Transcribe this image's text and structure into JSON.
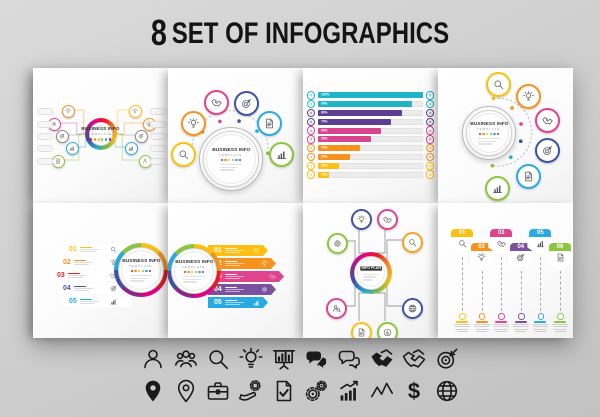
{
  "title": {
    "number": "8",
    "text": "SET OF INFOGRAPHICS"
  },
  "circle_text": {
    "line1": "BUSINESS INFO",
    "line2": "TEMPLATE"
  },
  "palette": {
    "red": "#ed1c24",
    "orange": "#f6921e",
    "yellow": "#fdc010",
    "green": "#8cc63e",
    "cyan": "#29abe2",
    "teal": "#1fb5c6",
    "blue": "#4053a3",
    "purple": "#7b519d",
    "magenta": "#e0448c",
    "violet": "#92278f",
    "ink": "#1a1a1a"
  },
  "panels": {
    "network_horizontal": {
      "name": "horizontal network infographic",
      "left_nodes": [
        {
          "icon": "idea",
          "color": "#f6921e"
        },
        {
          "icon": "gear",
          "color": "#e0448c"
        },
        {
          "icon": "target",
          "color": "#8a8a8a"
        },
        {
          "icon": "chart",
          "color": "#29abe2"
        },
        {
          "icon": "doc",
          "color": "#8cc63e"
        }
      ],
      "right_nodes": [
        {
          "icon": "idea",
          "color": "#fdc010"
        },
        {
          "icon": "money",
          "color": "#f6921e"
        },
        {
          "icon": "target",
          "color": "#8a8a8a"
        },
        {
          "icon": "chart",
          "color": "#29abe2"
        },
        {
          "icon": "person",
          "color": "#8cc63e"
        }
      ]
    },
    "badges_arc": {
      "name": "circle badges arc infographic",
      "badges": [
        {
          "icon": "search",
          "color": "#fdc010"
        },
        {
          "icon": "idea",
          "color": "#f6921e"
        },
        {
          "icon": "handshake",
          "color": "#e0448c"
        },
        {
          "icon": "target",
          "color": "#4053a3"
        },
        {
          "icon": "doc",
          "color": "#29abe2"
        },
        {
          "icon": "chart",
          "color": "#8cc63e"
        }
      ]
    },
    "bar_chart": {
      "name": "horizontal percentage bar chart"
    },
    "badges_vertical": {
      "name": "circle badges vertical infographic",
      "badges": [
        {
          "icon": "search",
          "color": "#fdc010"
        },
        {
          "icon": "idea",
          "color": "#f6921e"
        },
        {
          "icon": "handshake",
          "color": "#e0448c"
        },
        {
          "icon": "target",
          "color": "#4053a3"
        },
        {
          "icon": "doc",
          "color": "#29abe2"
        },
        {
          "icon": "chart",
          "color": "#8cc63e"
        }
      ]
    },
    "banners_left": {
      "name": "numbered banner list with segmented circle right",
      "items": [
        {
          "num": "01",
          "color": "#fdc010",
          "icon": "search"
        },
        {
          "num": "02",
          "color": "#f6921e",
          "icon": "idea"
        },
        {
          "num": "03",
          "color": "#ed1c24",
          "icon": "handshake"
        },
        {
          "num": "04",
          "color": "#4053a3",
          "icon": "target"
        },
        {
          "num": "05",
          "color": "#29abe2",
          "icon": "chart"
        }
      ]
    },
    "banners_right": {
      "name": "segmented circle left with colored arrow banners",
      "items": [
        {
          "num": "01",
          "color": "#fdc010",
          "icon": "search"
        },
        {
          "num": "02",
          "color": "#f6921e",
          "icon": "idea"
        },
        {
          "num": "03",
          "color": "#e0448c",
          "icon": "handshake"
        },
        {
          "num": "04",
          "color": "#7b519d",
          "icon": "gear"
        },
        {
          "num": "05",
          "color": "#29abe2",
          "icon": "chart"
        }
      ]
    },
    "network_tree": {
      "name": "radial network tree infographic",
      "center_label": "INFO PLAN",
      "nodes": [
        {
          "icon": "idea",
          "color": "#4053a3"
        },
        {
          "icon": "handshake",
          "color": "#e0448c"
        },
        {
          "icon": "gear",
          "color": "#8cc63e"
        },
        {
          "icon": "search",
          "color": "#f6a21e"
        },
        {
          "icon": "person-search",
          "color": "#e0448c"
        },
        {
          "icon": "globe",
          "color": "#4053a3"
        },
        {
          "icon": "doc",
          "color": "#fdc010"
        },
        {
          "icon": "money",
          "color": "#8cc63e"
        }
      ]
    },
    "timeline": {
      "name": "hexagon marker timeline",
      "steps": [
        {
          "num": "01",
          "color": "#fdc010",
          "icon": "search"
        },
        {
          "num": "02",
          "color": "#f6921e",
          "icon": "idea"
        },
        {
          "num": "03",
          "color": "#e0448c",
          "icon": "handshake"
        },
        {
          "num": "04",
          "color": "#7b519d",
          "icon": "target"
        },
        {
          "num": "05",
          "color": "#29abe2",
          "icon": "chart"
        },
        {
          "num": "06",
          "color": "#8cc63e",
          "icon": "doc"
        }
      ]
    }
  },
  "chart_data": {
    "type": "bar",
    "orientation": "horizontal",
    "title": "",
    "xlabel": "",
    "ylabel": "",
    "categories": [
      "1",
      "2",
      "3",
      "4",
      "5",
      "6",
      "7",
      "8",
      "9",
      "10"
    ],
    "values": [
      100,
      90,
      80,
      70,
      60,
      50,
      40,
      30,
      20,
      10
    ],
    "labels": [
      "100%",
      "90%",
      "80%",
      "70%",
      "60%",
      "50%",
      "40%",
      "30%",
      "20%",
      "10%"
    ],
    "colors": [
      "#1fb5c6",
      "#1fb5c6",
      "#5d3f91",
      "#5d3f91",
      "#d6458e",
      "#d6458e",
      "#f6921e",
      "#f6921e",
      "#fdc010",
      "#fdc010"
    ],
    "xlim": [
      0,
      100
    ],
    "grid": false,
    "legend": false
  },
  "icon_rows": [
    [
      "person",
      "group",
      "search",
      "idea",
      "board",
      "chat-filled",
      "chat-outline",
      "handshake-filled",
      "handshake-outline",
      "target"
    ],
    [
      "pin-filled",
      "pin-outline",
      "briefcase",
      "hand-gear",
      "doc-check",
      "gears",
      "chart-growth",
      "line-graph",
      "dollar",
      "globe"
    ]
  ]
}
